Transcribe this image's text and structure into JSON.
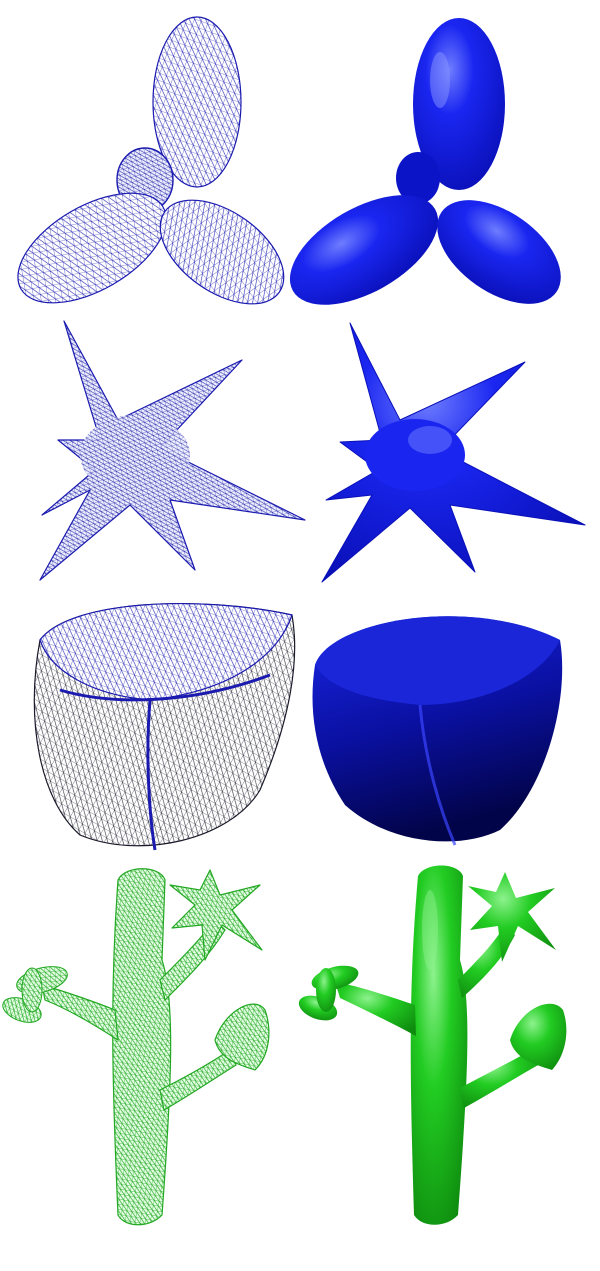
{
  "figure": {
    "colors": {
      "background": "#ffffff",
      "blue_wire": "#1a1ab0",
      "blue_shaded": "#0a12d8",
      "blue_highlight": "#6f7dff",
      "blue_shadow": "#02044a",
      "dark_wire": "#1a1a2a",
      "green_wire": "#2bb32b",
      "green_shaded": "#1ac81a",
      "green_highlight": "#8df28d",
      "green_shadow": "#0a5a0a"
    },
    "rows": [
      {
        "shape": "trefoil-petal-surface",
        "left": "wireframe-mesh",
        "right": "smooth-shaded"
      },
      {
        "shape": "star-spike-surface",
        "left": "wireframe-mesh",
        "right": "smooth-shaded"
      },
      {
        "shape": "saddle-bowl-surface",
        "left": "wireframe-mesh",
        "right": "smooth-shaded"
      },
      {
        "shape": "tree-surface",
        "left": "wireframe-mesh",
        "right": "smooth-shaded"
      }
    ]
  }
}
